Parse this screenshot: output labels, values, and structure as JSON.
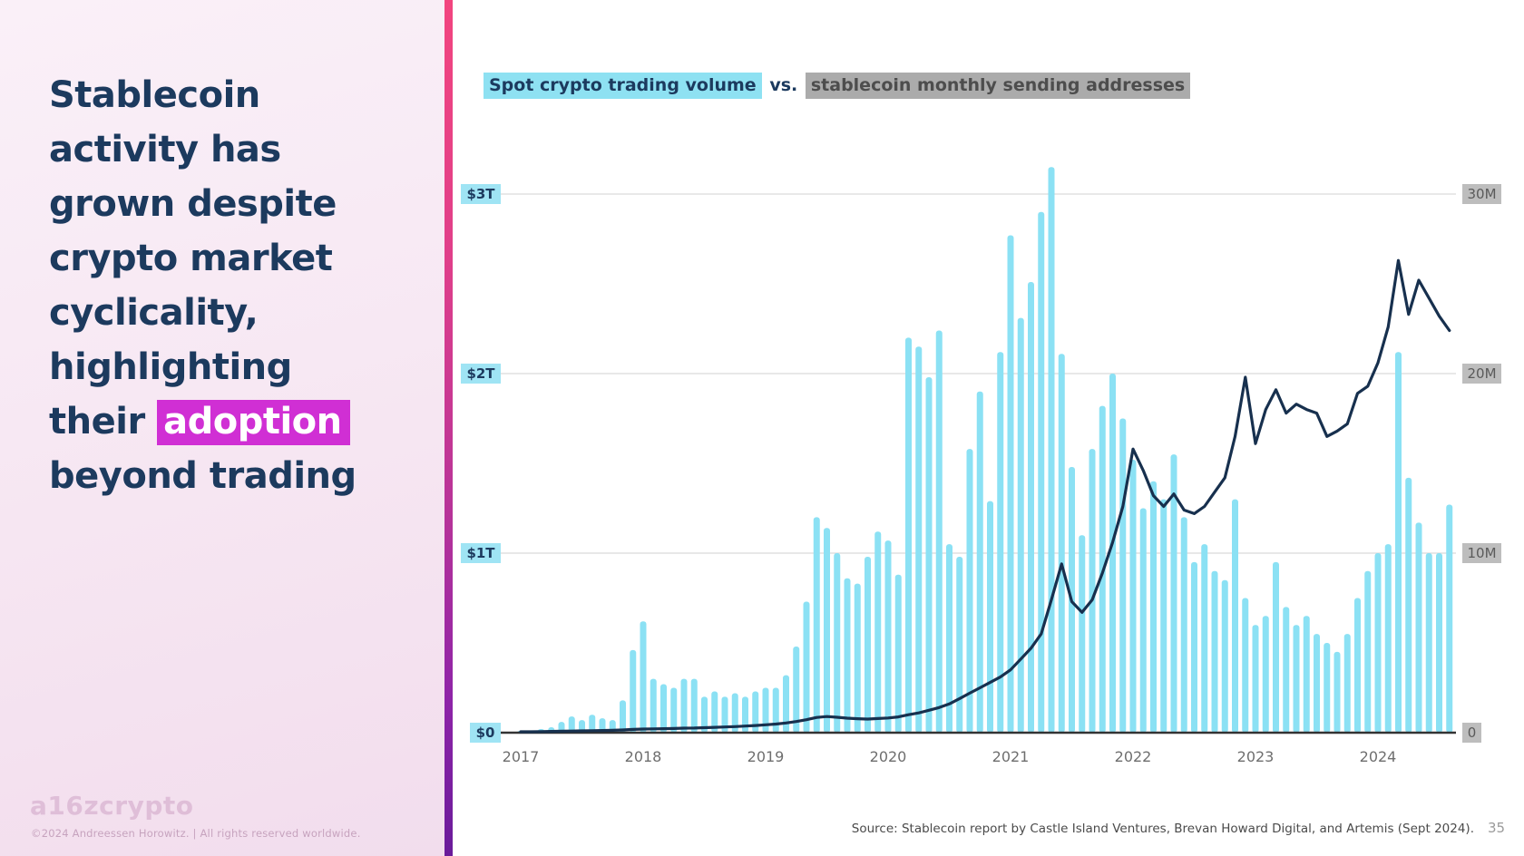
{
  "slide": {
    "title": {
      "pre": "Stablecoin activity has grown despite crypto market cyclicality, highlighting their ",
      "highlight": "adoption",
      "post": " beyond trading"
    },
    "footer": {
      "logo": "a16zcrypto",
      "copyright": "©2024 Andreessen Horowitz.  |  All rights reserved worldwide."
    },
    "source": "Source: Stablecoin report by Castle Island Ventures, Brevan Howard Digital, and Artemis (Sept 2024).",
    "page_number": "35"
  },
  "chart_title": {
    "part1": "Spot crypto trading volume",
    "separator": " vs. ",
    "part2": "stablecoin monthly sending addresses"
  },
  "colors": {
    "bar": "#8be1f4",
    "line": "#17304e",
    "navy_text": "#1c3a5e",
    "magenta_highlight": "#d02fd4",
    "cyan_highlight": "#8ee1f2",
    "gray_highlight": "#ababab",
    "gridline": "#d9d9d9"
  },
  "chart_data": {
    "type": "bar",
    "title": "Spot crypto trading volume vs. stablecoin monthly sending addresses",
    "x_start": "2017-01",
    "x_end": "2024-08",
    "categories": [
      "2017",
      "2018",
      "2019",
      "2020",
      "2021",
      "2022",
      "2023",
      "2024"
    ],
    "grid": "horizontal",
    "left_axis": {
      "tick_labels": [
        "$0",
        "$1T",
        "$2T",
        "$3T"
      ],
      "lim": [
        0,
        3.4
      ],
      "unit": "USD trillions, monthly"
    },
    "right_axis": {
      "tick_labels": [
        "0",
        "10M",
        "20M",
        "30M"
      ],
      "lim": [
        0,
        34
      ],
      "unit": "addresses, millions, monthly"
    },
    "series": [
      {
        "name": "Spot crypto trading volume",
        "type": "bar",
        "axis": "left",
        "unit": "$T",
        "values": [
          0.01,
          0.01,
          0.02,
          0.03,
          0.06,
          0.09,
          0.07,
          0.1,
          0.08,
          0.07,
          0.18,
          0.46,
          0.62,
          0.3,
          0.27,
          0.25,
          0.3,
          0.3,
          0.2,
          0.23,
          0.2,
          0.22,
          0.2,
          0.23,
          0.25,
          0.25,
          0.32,
          0.48,
          0.73,
          1.2,
          1.14,
          1.0,
          0.86,
          0.83,
          0.98,
          1.12,
          1.07,
          0.88,
          2.2,
          2.15,
          1.98,
          2.24,
          1.05,
          0.98,
          1.58,
          1.9,
          1.29,
          2.12,
          2.77,
          2.31,
          2.51,
          2.9,
          3.15,
          2.11,
          1.48,
          1.1,
          1.58,
          1.82,
          2.0,
          1.75,
          1.52,
          1.25,
          1.4,
          1.3,
          1.55,
          1.2,
          0.95,
          1.05,
          0.9,
          0.85,
          1.3,
          0.75,
          0.6,
          0.65,
          0.95,
          0.7,
          0.6,
          0.65,
          0.55,
          0.5,
          0.45,
          0.55,
          0.75,
          0.9,
          1.0,
          1.05,
          2.12,
          1.42,
          1.17,
          1.0,
          1.0,
          1.27
        ]
      },
      {
        "name": "Stablecoin monthly sending addresses",
        "type": "line",
        "axis": "right",
        "unit": "M",
        "values": [
          0.05,
          0.05,
          0.06,
          0.07,
          0.08,
          0.09,
          0.1,
          0.11,
          0.12,
          0.13,
          0.15,
          0.18,
          0.2,
          0.21,
          0.22,
          0.23,
          0.25,
          0.26,
          0.28,
          0.3,
          0.32,
          0.34,
          0.37,
          0.4,
          0.44,
          0.48,
          0.54,
          0.62,
          0.72,
          0.85,
          0.9,
          0.86,
          0.81,
          0.78,
          0.76,
          0.79,
          0.82,
          0.88,
          1.0,
          1.1,
          1.25,
          1.4,
          1.6,
          1.9,
          2.2,
          2.5,
          2.8,
          3.1,
          3.5,
          4.1,
          4.7,
          5.5,
          7.4,
          9.4,
          7.3,
          6.7,
          7.4,
          8.9,
          10.6,
          12.6,
          15.8,
          14.6,
          13.2,
          12.6,
          13.3,
          12.4,
          12.2,
          12.6,
          13.4,
          14.2,
          16.5,
          19.8,
          16.1,
          18.0,
          19.1,
          17.8,
          18.3,
          18.0,
          17.8,
          16.5,
          16.8,
          17.2,
          18.9,
          19.3,
          20.6,
          22.6,
          26.3,
          23.3,
          25.2,
          24.2,
          23.2,
          22.4
        ]
      }
    ]
  }
}
